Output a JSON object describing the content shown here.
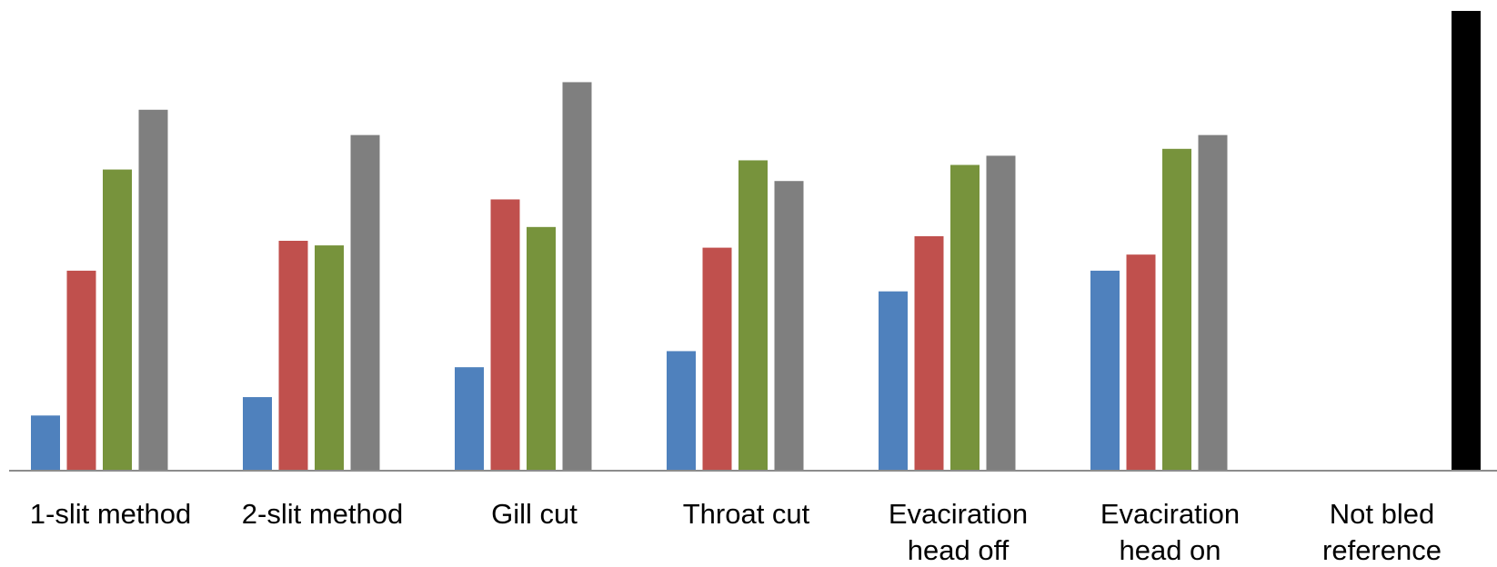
{
  "chart_data": {
    "type": "bar",
    "title": "",
    "xlabel": "",
    "ylabel": "",
    "categories": [
      "1-slit method",
      "2-slit method",
      "Gill cut",
      "Throat cut",
      "Evaciration head off",
      "Evaciration head on",
      "Not bled reference"
    ],
    "category_label_lines": [
      [
        "1-slit method"
      ],
      [
        "2-slit method"
      ],
      [
        "Gill cut"
      ],
      [
        "Throat cut"
      ],
      [
        "Evaciration",
        "head off"
      ],
      [
        "Evaciration",
        "head on"
      ],
      [
        "Not bled",
        "reference"
      ]
    ],
    "series": [
      {
        "values": [
          12,
          16,
          22.5,
          26,
          39,
          43.5,
          null
        ],
        "color": "#4f81bd"
      },
      {
        "values": [
          43.5,
          50,
          59,
          48.5,
          51,
          47,
          null
        ],
        "color": "#c0504d"
      },
      {
        "values": [
          65.5,
          49,
          53,
          67.5,
          66.5,
          70,
          null
        ],
        "color": "#77933c"
      },
      {
        "values": [
          78.5,
          73,
          84.5,
          63,
          68.5,
          73,
          null
        ],
        "color": "#7f7f7f"
      },
      {
        "values": [
          null,
          null,
          null,
          null,
          null,
          null,
          100
        ],
        "color": "#000000"
      }
    ],
    "ylim": [
      0,
      100
    ],
    "grid": false,
    "legend": "none"
  }
}
